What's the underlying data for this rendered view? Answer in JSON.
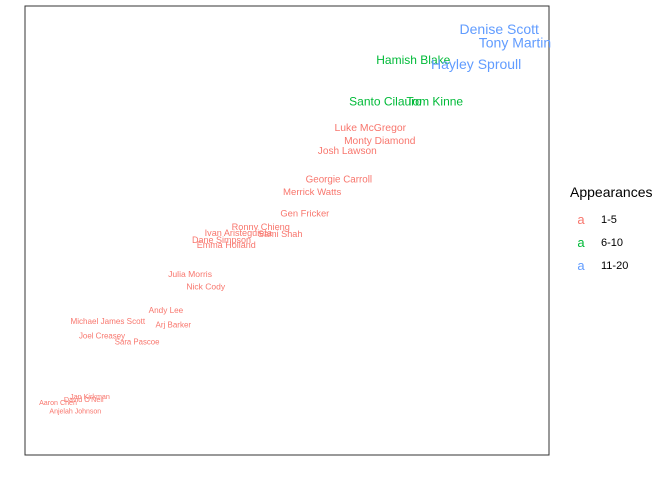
{
  "chart_data": {
    "type": "scatter",
    "title": "",
    "xlabel": "",
    "ylabel": "",
    "xlim": [
      0,
      100
    ],
    "ylim": [
      0,
      100
    ],
    "grid": false,
    "legend": {
      "title": "Appearances",
      "placement": "right",
      "key_glyph": "a",
      "entries": [
        {
          "label": "1-5",
          "color": "#F8766D"
        },
        {
          "label": "6-10",
          "color": "#00BA38"
        },
        {
          "label": "11-20",
          "color": "#619CFF"
        }
      ]
    },
    "points": [
      {
        "label": "Denise Scott",
        "group": "11-20",
        "x": 90.5,
        "y": 94.6
      },
      {
        "label": "Tony Martin",
        "group": "11-20",
        "x": 93.5,
        "y": 91.6
      },
      {
        "label": "Hamish Blake",
        "group": "6-10",
        "x": 74.1,
        "y": 87.8
      },
      {
        "label": "Hayley Sproull",
        "group": "11-20",
        "x": 86.1,
        "y": 86.8
      },
      {
        "label": "Santo Cilauro",
        "group": "6-10",
        "x": 68.8,
        "y": 78.5
      },
      {
        "label": "Tom Kinne",
        "group": "6-10",
        "x": 78.2,
        "y": 78.5
      },
      {
        "label": "Luke McGregor",
        "group": "1-5",
        "x": 65.9,
        "y": 72.8
      },
      {
        "label": "Monty Diamond",
        "group": "1-5",
        "x": 67.7,
        "y": 69.9
      },
      {
        "label": "Josh Lawson",
        "group": "1-5",
        "x": 61.5,
        "y": 67.6
      },
      {
        "label": "Georgie Carroll",
        "group": "1-5",
        "x": 59.9,
        "y": 61.3
      },
      {
        "label": "Merrick Watts",
        "group": "1-5",
        "x": 54.8,
        "y": 58.5
      },
      {
        "label": "Gen Fricker",
        "group": "1-5",
        "x": 53.4,
        "y": 53.7
      },
      {
        "label": "Ronny Chieng",
        "group": "1-5",
        "x": 45.0,
        "y": 50.6
      },
      {
        "label": "Ivan Aristeguieta",
        "group": "1-5",
        "x": 40.7,
        "y": 49.3
      },
      {
        "label": "Sami Shah",
        "group": "1-5",
        "x": 48.7,
        "y": 49.1
      },
      {
        "label": "Dane Simpson",
        "group": "1-5",
        "x": 37.5,
        "y": 47.8
      },
      {
        "label": "Emma Holland",
        "group": "1-5",
        "x": 38.4,
        "y": 46.6
      },
      {
        "label": "Julia Morris",
        "group": "1-5",
        "x": 31.5,
        "y": 40.1
      },
      {
        "label": "Nick Cody",
        "group": "1-5",
        "x": 34.5,
        "y": 37.4
      },
      {
        "label": "Andy Lee",
        "group": "1-5",
        "x": 26.9,
        "y": 32.1
      },
      {
        "label": "Michael James Scott",
        "group": "1-5",
        "x": 15.8,
        "y": 29.6
      },
      {
        "label": "Arj Barker",
        "group": "1-5",
        "x": 28.3,
        "y": 28.9
      },
      {
        "label": "Joel Creasey",
        "group": "1-5",
        "x": 14.7,
        "y": 26.4
      },
      {
        "label": "Sara Pascoe",
        "group": "1-5",
        "x": 21.4,
        "y": 25.1
      },
      {
        "label": "Jan Kirkman",
        "group": "1-5",
        "x": 12.4,
        "y": 12.9
      },
      {
        "label": "David O'Neil",
        "group": "1-5",
        "x": 11.2,
        "y": 12.2
      },
      {
        "label": "Aaron Chen",
        "group": "1-5",
        "x": 6.3,
        "y": 11.6
      },
      {
        "label": "Anjelah Johnson",
        "group": "1-5",
        "x": 9.6,
        "y": 9.6
      }
    ]
  }
}
